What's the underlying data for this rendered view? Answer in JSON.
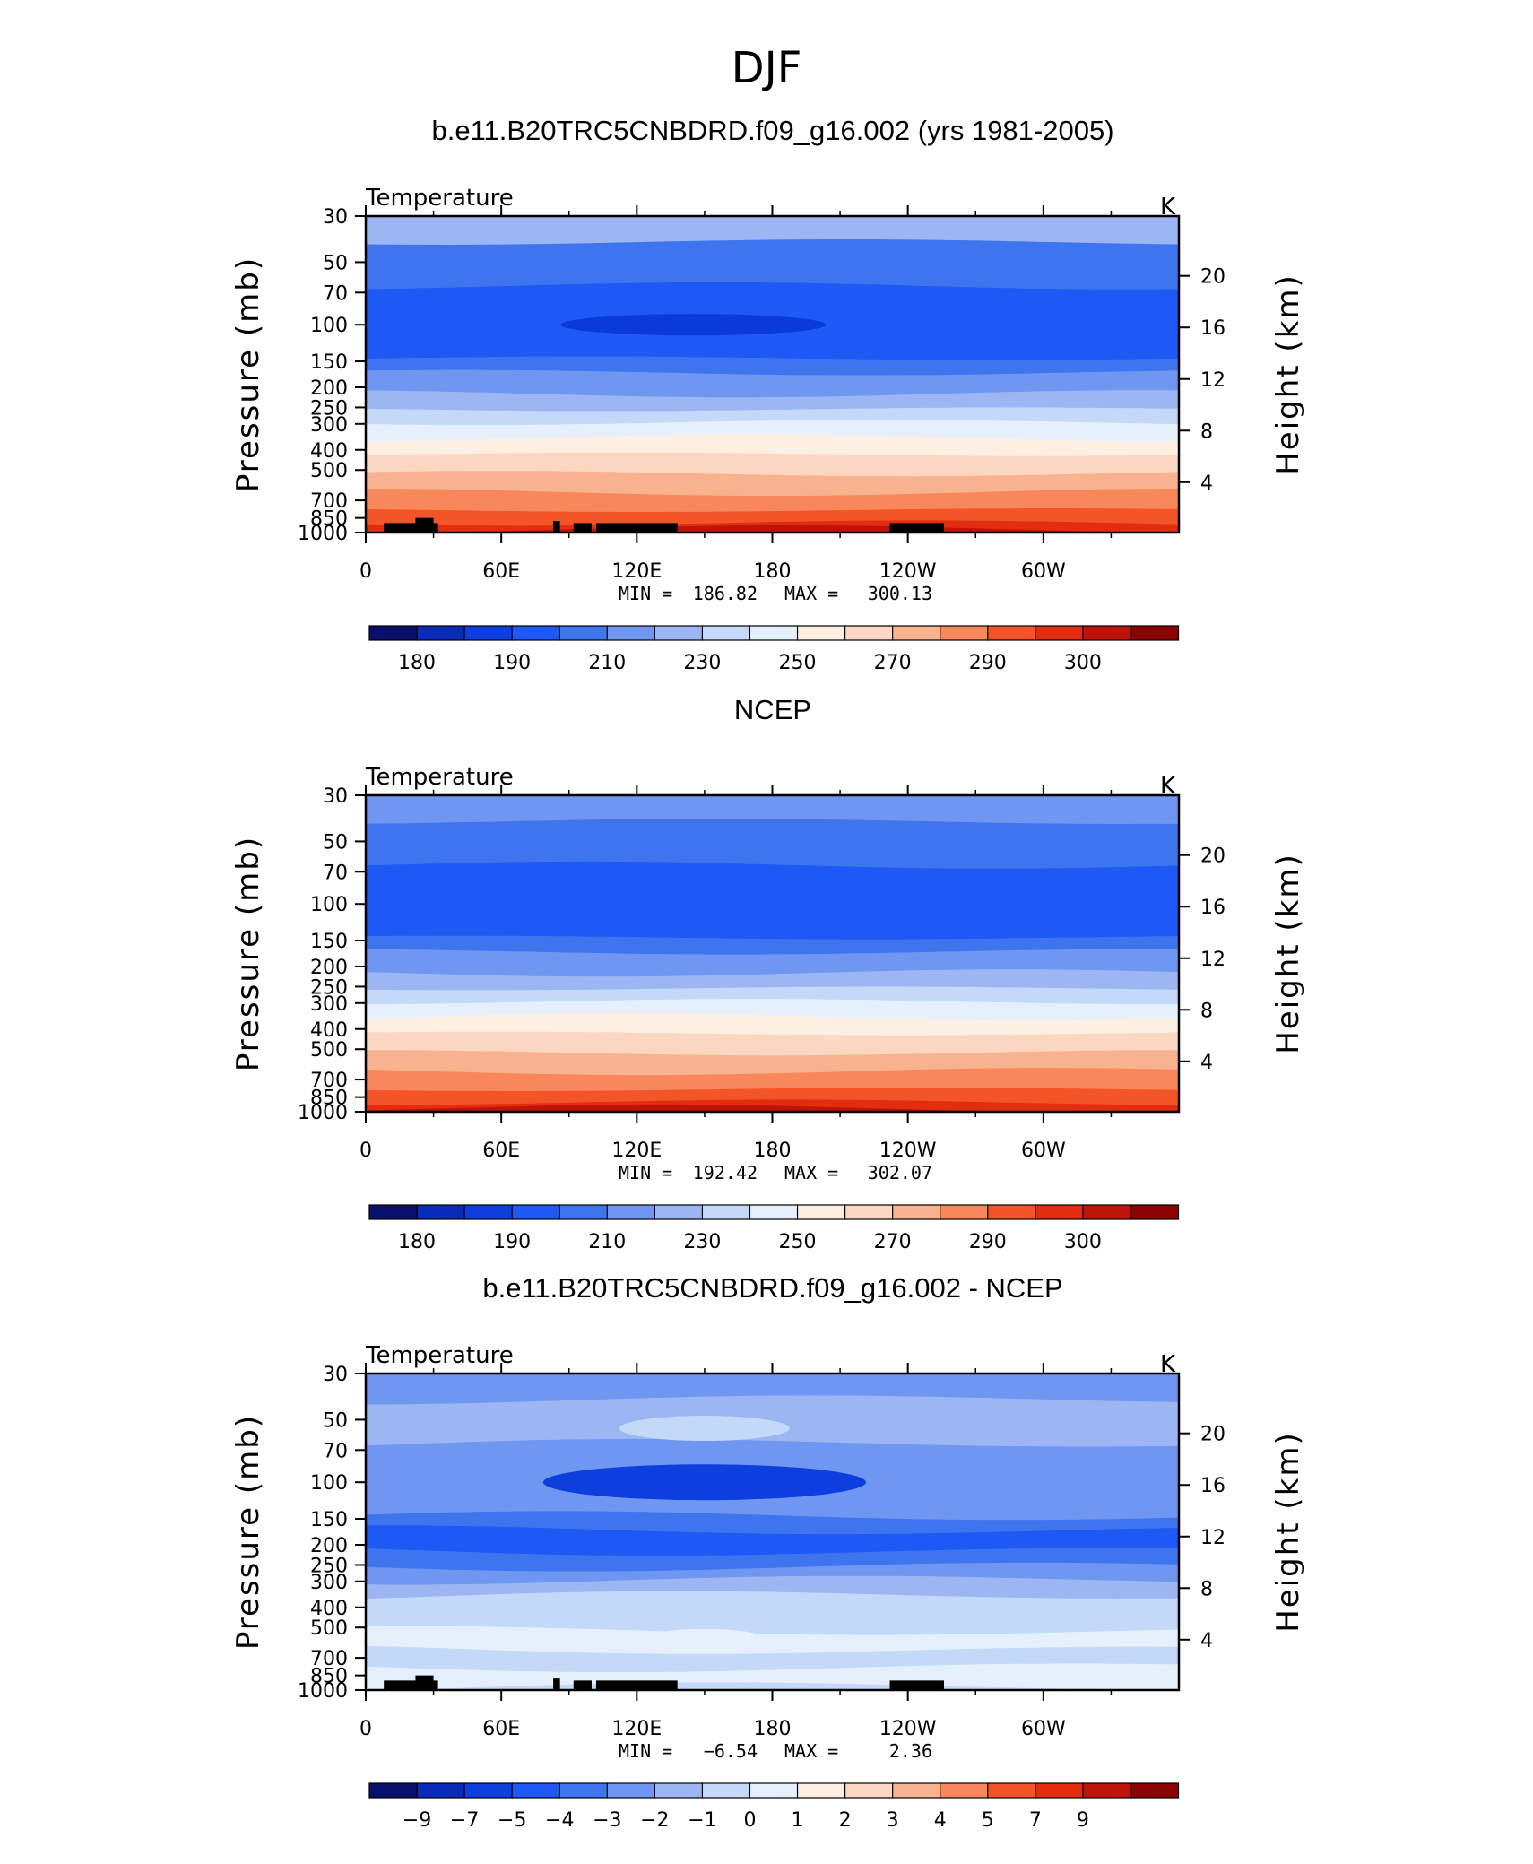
{
  "figure": {
    "main_title": "DJF"
  },
  "palette_warm_cold": [
    "#08106b",
    "#0a2ab8",
    "#0c3fdd",
    "#1e58f5",
    "#3e75ef",
    "#6f96f0",
    "#9bb6f3",
    "#c4d8f8",
    "#e6f0fc",
    "#fdf0e2",
    "#fbd6c0",
    "#f9b28f",
    "#f8875b",
    "#f45528",
    "#e22d10",
    "#bd1308",
    "#8b0404"
  ],
  "chart_data": [
    {
      "type": "heatmap",
      "title": "b.e11.B20TRC5CNBDRD.f09_g16.002 (yrs 1981-2005)",
      "variable": "Temperature",
      "units": "K",
      "ylabel": "Pressure (mb)",
      "ylabel2": "Height (km)",
      "x_ticks": [
        "0",
        "60E",
        "120E",
        "180",
        "120W",
        "60W"
      ],
      "y_ticks": [
        "30",
        "50",
        "70",
        "100",
        "150",
        "200",
        "250",
        "300",
        "400",
        "500",
        "700",
        "850",
        "1000"
      ],
      "y2_ticks": [
        "20",
        "16",
        "12",
        "8",
        "4"
      ],
      "stats": {
        "min_label": "MIN =",
        "min": "186.82",
        "max_label": "MAX =",
        "max": "300.13"
      },
      "colorbar_labels": [
        "180",
        "190",
        "210",
        "230",
        "250",
        "270",
        "290",
        "300"
      ],
      "layer_colors": [
        "#9bb6f3",
        "#3e75ef",
        "#1e58f5",
        "#3e75ef",
        "#6f96f0",
        "#9bb6f3",
        "#c4d8f8",
        "#e6f0fc",
        "#fdf0e2",
        "#fbd6c0",
        "#f9b28f",
        "#f8875b",
        "#f45528",
        "#e22d10",
        "#bd1308"
      ],
      "pressure_levels_mb": [
        30,
        50,
        70,
        100,
        150,
        200,
        250,
        300,
        400,
        500,
        700,
        850,
        1000
      ],
      "core_color": "#0a3ad8",
      "has_topography": true
    },
    {
      "type": "heatmap",
      "title": "NCEP",
      "variable": "Temperature",
      "units": "K",
      "ylabel": "Pressure (mb)",
      "ylabel2": "Height (km)",
      "x_ticks": [
        "0",
        "60E",
        "120E",
        "180",
        "120W",
        "60W"
      ],
      "y_ticks": [
        "30",
        "50",
        "70",
        "100",
        "150",
        "200",
        "250",
        "300",
        "400",
        "500",
        "700",
        "850",
        "1000"
      ],
      "y2_ticks": [
        "20",
        "16",
        "12",
        "8",
        "4"
      ],
      "stats": {
        "min_label": "MIN =",
        "min": "192.42",
        "max_label": "MAX =",
        "max": "302.07"
      },
      "colorbar_labels": [
        "180",
        "190",
        "210",
        "230",
        "250",
        "270",
        "290",
        "300"
      ],
      "layer_colors": [
        "#6f96f0",
        "#3e75ef",
        "#1e58f5",
        "#3e75ef",
        "#6f96f0",
        "#9bb6f3",
        "#c4d8f8",
        "#e6f0fc",
        "#fdf0e2",
        "#fbd6c0",
        "#f9b28f",
        "#f8875b",
        "#f45528",
        "#e22d10",
        "#bd1308"
      ],
      "pressure_levels_mb": [
        30,
        50,
        70,
        100,
        150,
        200,
        250,
        300,
        400,
        500,
        700,
        850,
        1000
      ],
      "has_topography": false
    },
    {
      "type": "heatmap",
      "title": "b.e11.B20TRC5CNBDRD.f09_g16.002 - NCEP",
      "variable": "Temperature",
      "units": "K",
      "ylabel": "Pressure (mb)",
      "ylabel2": "Height (km)",
      "x_ticks": [
        "0",
        "60E",
        "120E",
        "180",
        "120W",
        "60W"
      ],
      "y_ticks": [
        "30",
        "50",
        "70",
        "100",
        "150",
        "200",
        "250",
        "300",
        "400",
        "500",
        "700",
        "850",
        "1000"
      ],
      "y2_ticks": [
        "20",
        "16",
        "12",
        "8",
        "4"
      ],
      "stats": {
        "min_label": "MIN =",
        "min": "−6.54",
        "max_label": "MAX =",
        "max": "2.36"
      },
      "colorbar_labels": [
        "−9",
        "−7",
        "−5",
        "−4",
        "−3",
        "−2",
        "−1",
        "0",
        "1",
        "2",
        "3",
        "4",
        "5",
        "7",
        "9"
      ],
      "layer_colors": [
        "#6f96f0",
        "#9bb6f3",
        "#6f96f0",
        "#3e75ef",
        "#1e58f5",
        "#3e75ef",
        "#6f96f0",
        "#9bb6f3",
        "#c4d8f8",
        "#c4d8f8",
        "#e6f0fc",
        "#c4d8f8",
        "#e6f0fc",
        "#e6f0fc",
        "#c4d8f8"
      ],
      "pressure_levels_mb": [
        30,
        50,
        70,
        100,
        150,
        200,
        250,
        300,
        400,
        500,
        700,
        850,
        1000
      ],
      "has_topography": true
    }
  ]
}
